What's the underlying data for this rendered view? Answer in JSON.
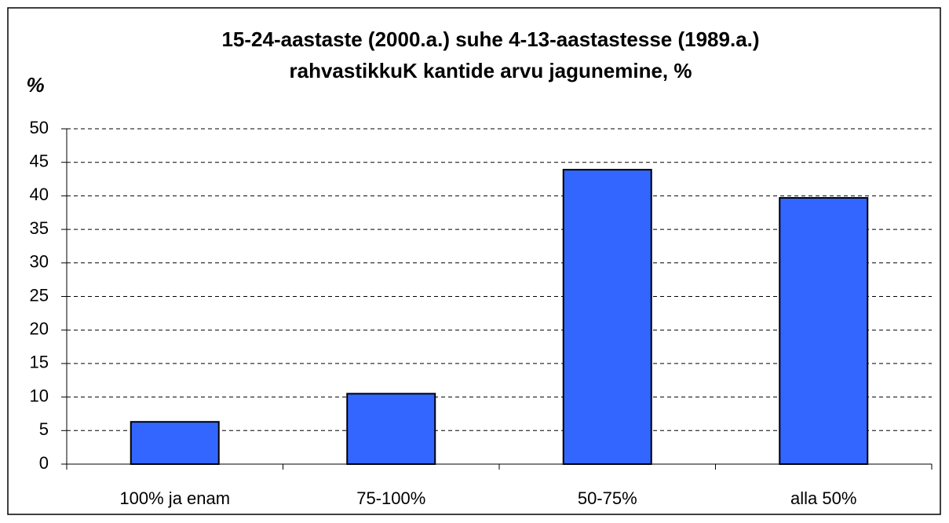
{
  "chart_data": {
    "type": "bar",
    "title": [
      "15-24-aastaste (2000.a.) suhe 4-13-aastastesse (1989.a.)",
      "rahvastikkuK kantide arvu jagunemine, %"
    ],
    "y_label": "%",
    "categories": [
      "100% ja enam",
      "75-100%",
      "50-75%",
      "alla 50%"
    ],
    "values": [
      6.3,
      10.5,
      43.9,
      39.7
    ],
    "color": "#3366ff",
    "ylim": [
      0,
      50
    ],
    "yticks": [
      0,
      5,
      10,
      15,
      20,
      25,
      30,
      35,
      40,
      45,
      50
    ],
    "grid": true
  }
}
